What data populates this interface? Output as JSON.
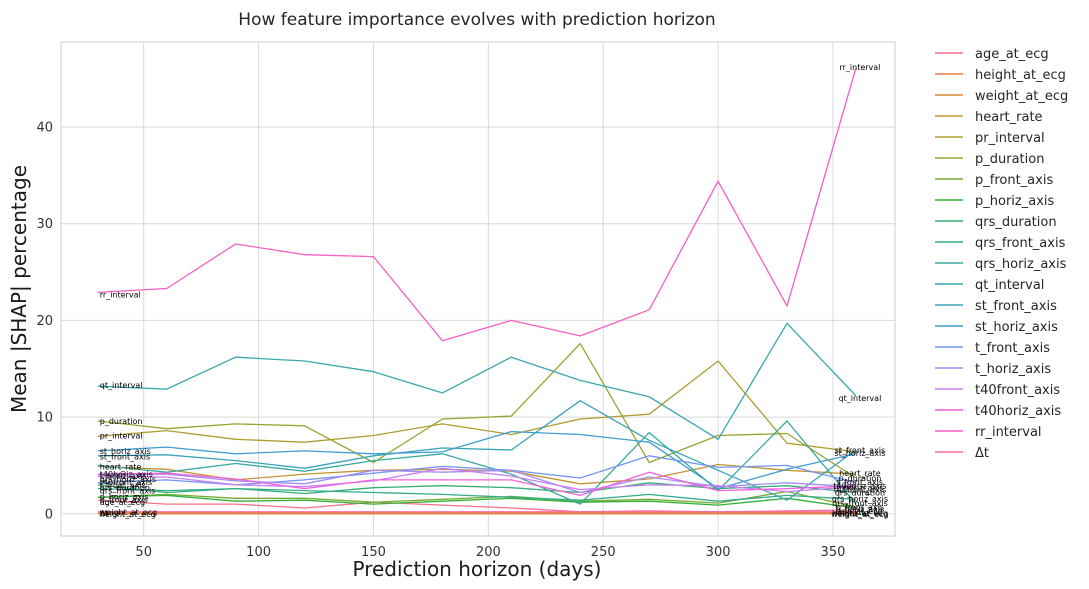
{
  "chart_data": {
    "type": "line",
    "title": "How feature importance evolves with prediction horizon",
    "xlabel": "Prediction horizon (days)",
    "ylabel": "Mean |SHAP| percentage",
    "xlim": [
      14,
      377
    ],
    "ylim": [
      -2.3,
      48.8
    ],
    "xticks": [
      50,
      100,
      150,
      200,
      250,
      300,
      350
    ],
    "yticks": [
      0,
      10,
      20,
      30,
      40
    ],
    "grid": true,
    "legend_position": "outside-right",
    "x": [
      30,
      60,
      90,
      120,
      150,
      180,
      210,
      240,
      270,
      300,
      330,
      360
    ],
    "series": [
      {
        "name": "age_at_ecg",
        "color": "#f77189",
        "values": [
          1.4,
          1.0,
          1.0,
          0.6,
          1.2,
          0.9,
          0.6,
          0.2,
          0.3,
          0.2,
          0.3,
          0.4
        ]
      },
      {
        "name": "height_at_ecg",
        "color": "#f57b45",
        "values": [
          0.1,
          0.1,
          0.1,
          0.1,
          0.1,
          0.1,
          0.1,
          0.1,
          0.1,
          0.1,
          0.1,
          0.1
        ]
      },
      {
        "name": "weight_at_ecg",
        "color": "#dc8932",
        "values": [
          0.0,
          0.0,
          0.0,
          0.0,
          0.0,
          0.0,
          0.0,
          0.0,
          0.0,
          0.0,
          0.0,
          0.0
        ]
      },
      {
        "name": "heart_rate",
        "color": "#c39532",
        "values": [
          4.9,
          4.6,
          3.5,
          4.1,
          4.5,
          4.6,
          4.4,
          3.1,
          3.6,
          5.1,
          4.5,
          4.1
        ]
      },
      {
        "name": "pr_interval",
        "color": "#ae9d31",
        "values": [
          8.0,
          8.6,
          7.7,
          7.4,
          8.1,
          9.3,
          8.2,
          9.8,
          10.3,
          15.8,
          7.3,
          6.4
        ]
      },
      {
        "name": "p_duration",
        "color": "#97a431",
        "values": [
          9.6,
          8.8,
          9.3,
          9.1,
          5.3,
          9.8,
          10.1,
          17.6,
          5.3,
          8.1,
          8.3,
          3.7
        ]
      },
      {
        "name": "p_front_axis",
        "color": "#77ab31",
        "values": [
          1.7,
          2.0,
          1.6,
          1.6,
          1.2,
          1.5,
          1.8,
          1.3,
          1.5,
          1.1,
          2.3,
          0.7
        ]
      },
      {
        "name": "p_horiz_axis",
        "color": "#33b039",
        "values": [
          1.7,
          1.9,
          1.3,
          1.4,
          1.0,
          1.3,
          1.6,
          1.2,
          1.3,
          0.9,
          1.6,
          0.6
        ]
      },
      {
        "name": "qrs_duration",
        "color": "#34ae74",
        "values": [
          3.0,
          2.2,
          2.6,
          2.1,
          2.7,
          2.9,
          2.7,
          2.2,
          3.2,
          2.6,
          2.9,
          2.2
        ]
      },
      {
        "name": "qrs_front_axis",
        "color": "#36ad8f",
        "values": [
          2.6,
          2.4,
          2.6,
          2.4,
          2.2,
          2.0,
          1.7,
          1.4,
          2.0,
          1.3,
          1.9,
          1.5
        ]
      },
      {
        "name": "qrs_horiz_axis",
        "color": "#38aaa0",
        "values": [
          5.0,
          4.3,
          5.2,
          4.4,
          5.5,
          6.2,
          4.1,
          1.0,
          8.4,
          2.4,
          9.6,
          1.0
        ]
      },
      {
        "name": "qt_interval",
        "color": "#39a7ae",
        "values": [
          13.2,
          12.9,
          16.2,
          15.8,
          14.7,
          12.5,
          16.2,
          13.8,
          12.1,
          7.7,
          19.7,
          12.2
        ]
      },
      {
        "name": "st_front_axis",
        "color": "#3ba3bc",
        "values": [
          6.0,
          6.1,
          5.5,
          4.7,
          6.0,
          6.8,
          6.6,
          11.7,
          7.6,
          4.5,
          1.4,
          6.6
        ]
      },
      {
        "name": "st_horiz_axis",
        "color": "#3f9ed1",
        "values": [
          6.5,
          6.9,
          6.2,
          6.5,
          6.2,
          6.4,
          8.5,
          8.2,
          7.4,
          2.6,
          4.6,
          6.2
        ]
      },
      {
        "name": "t_front_axis",
        "color": "#7495f4",
        "values": [
          3.2,
          3.5,
          3.0,
          3.5,
          4.2,
          4.9,
          4.5,
          3.7,
          6.0,
          4.8,
          5.0,
          3.2
        ]
      },
      {
        "name": "t_horiz_axis",
        "color": "#a38cf4",
        "values": [
          4.0,
          4.1,
          3.4,
          3.1,
          4.5,
          4.3,
          4.5,
          2.2,
          3.8,
          2.8,
          3.2,
          2.8
        ]
      },
      {
        "name": "t40front_axis",
        "color": "#c97ff4",
        "values": [
          3.8,
          3.8,
          3.0,
          2.8,
          3.4,
          4.7,
          3.9,
          2.5,
          3.0,
          2.9,
          2.3,
          2.8
        ]
      },
      {
        "name": "t40horiz_axis",
        "color": "#f161dd",
        "values": [
          4.1,
          4.2,
          3.6,
          2.6,
          3.5,
          3.5,
          3.5,
          1.9,
          4.3,
          2.4,
          2.6,
          2.9
        ]
      },
      {
        "name": "rr_interval",
        "color": "#f45fc3",
        "values": [
          22.9,
          23.3,
          27.9,
          26.8,
          26.6,
          17.9,
          20.0,
          18.4,
          21.1,
          34.4,
          21.5,
          46.1
        ]
      },
      {
        "name": "Δt",
        "color": "#f56fa7",
        "values": [
          0.2,
          0.2,
          0.2,
          0.2,
          0.2,
          0.2,
          0.2,
          0.2,
          0.2,
          0.2,
          0.2,
          0.2
        ]
      }
    ],
    "start_labels": [
      {
        "text": "rr_interval",
        "y": 22.7
      },
      {
        "text": "qt_interval",
        "y": 13.3
      },
      {
        "text": "p_duration",
        "y": 9.6
      },
      {
        "text": "pr_interval",
        "y": 8.1
      },
      {
        "text": "st_horiz_axis",
        "y": 6.5
      },
      {
        "text": "st_front_axis",
        "y": 5.9
      },
      {
        "text": "heart_rate",
        "y": 4.9
      },
      {
        "text": "t40horiz_axis",
        "y": 4.1
      },
      {
        "text": "t_horiz_axis",
        "y": 3.9
      },
      {
        "text": "qrs_horiz_axis",
        "y": 3.6
      },
      {
        "text": "t40front_axis",
        "y": 3.3
      },
      {
        "text": "t_front_axis",
        "y": 3.0
      },
      {
        "text": "qrs_duration",
        "y": 2.7
      },
      {
        "text": "qrs_front_axis",
        "y": 2.4
      },
      {
        "text": "p_horiz_axis",
        "y": 1.8
      },
      {
        "text": "p_front_axis",
        "y": 1.5
      },
      {
        "text": "age_at_ecg",
        "y": 1.2
      },
      {
        "text": "weight_at_ecg",
        "y": 0.2
      },
      {
        "text": "Δt",
        "y": 0.1
      },
      {
        "text": "height_at_ecg",
        "y": 0.0
      }
    ],
    "end_labels": [
      {
        "text": "rr_interval",
        "y": 46.2
      },
      {
        "text": "qt_interval",
        "y": 12.0
      },
      {
        "text": "st_front_axis",
        "y": 6.6
      },
      {
        "text": "st_horiz_axis",
        "y": 6.3
      },
      {
        "text": "heart_rate",
        "y": 4.2
      },
      {
        "text": "p_duration",
        "y": 3.7
      },
      {
        "text": "t_front_axis",
        "y": 3.3
      },
      {
        "text": "t40horiz_axis",
        "y": 2.9
      },
      {
        "text": "t_horiz_axis",
        "y": 2.7
      },
      {
        "text": "t40front_axis",
        "y": 2.5
      },
      {
        "text": "qrs_duration",
        "y": 2.2
      },
      {
        "text": "qrs_horiz_axis",
        "y": 1.6
      },
      {
        "text": "qrs_front_axis",
        "y": 1.1
      },
      {
        "text": "p_front_axis",
        "y": 0.7
      },
      {
        "text": "p_horiz_axis",
        "y": 0.5
      },
      {
        "text": "age_at_ecg",
        "y": 0.3
      },
      {
        "text": "Δt",
        "y": 0.2
      },
      {
        "text": "height_at_ecg",
        "y": 0.1
      },
      {
        "text": "weight_at_ecg",
        "y": 0.0
      }
    ]
  }
}
